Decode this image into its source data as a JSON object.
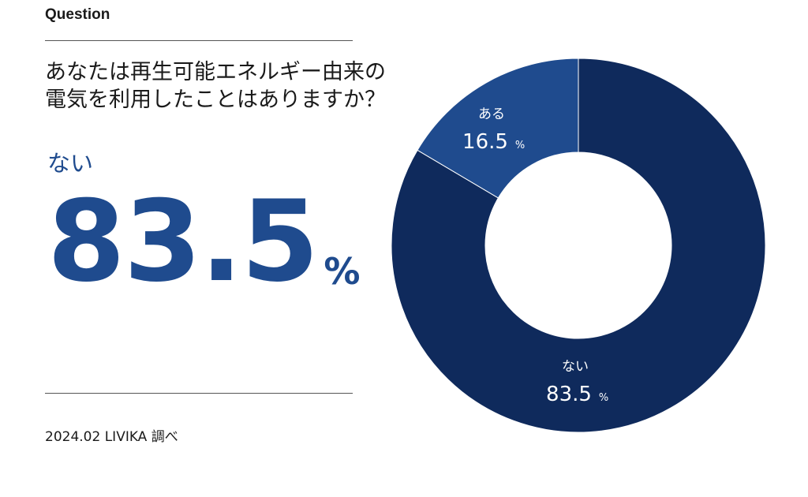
{
  "header": {
    "label": "Question"
  },
  "question": {
    "line1": "あなたは再生可能エネルギー由来の",
    "line2": "電気を利用したことはありますか？"
  },
  "highlight": {
    "label": "ない",
    "value": "83.5",
    "unit": "%"
  },
  "footer": {
    "source": "2024.02 LIVIKA 調べ"
  },
  "colors": {
    "highlight_text": "#1f4b8e",
    "slice_nai": "#0f2a5c",
    "slice_aru": "#1f4b8e"
  },
  "chart_data": {
    "type": "pie",
    "categories": [
      "ない",
      "ある"
    ],
    "values": [
      83.5,
      16.5
    ],
    "unit": "%",
    "slices": [
      {
        "label": "ない",
        "value": 83.5,
        "value_text": "83.5",
        "unit": "%",
        "color": "#0f2a5c"
      },
      {
        "label": "ある",
        "value": 16.5,
        "value_text": "16.5",
        "unit": "%",
        "color": "#1f4b8e"
      }
    ]
  }
}
